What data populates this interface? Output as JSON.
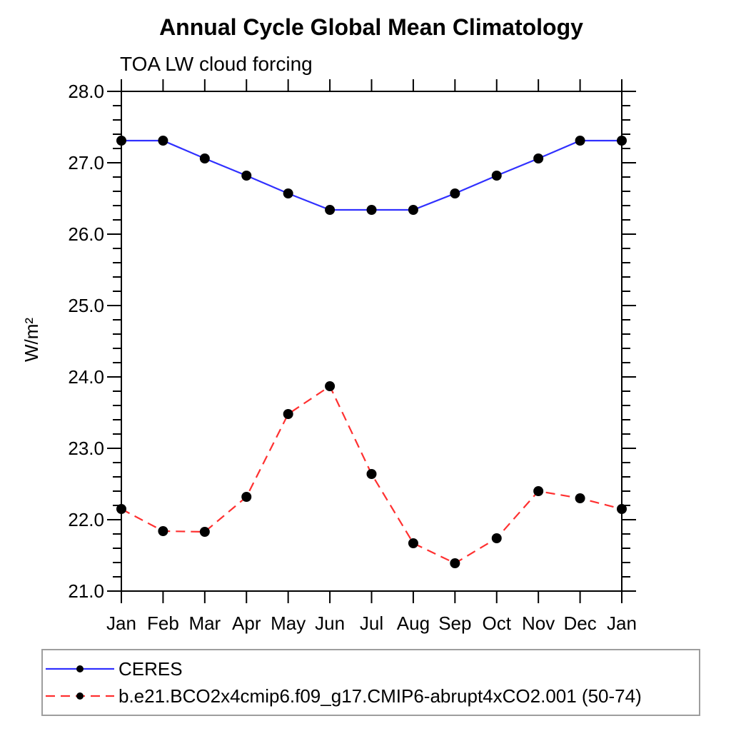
{
  "chart_data": {
    "type": "line",
    "title": "Annual Cycle Global Mean Climatology",
    "subtitle": "TOA LW cloud forcing",
    "ylabel": "W/m²",
    "xlabel": "",
    "categories": [
      "Jan",
      "Feb",
      "Mar",
      "Apr",
      "May",
      "Jun",
      "Jul",
      "Aug",
      "Sep",
      "Oct",
      "Nov",
      "Dec",
      "Jan"
    ],
    "series": [
      {
        "name": "CERES",
        "line_style": "solid",
        "color": "#3030ff",
        "marker": "filled-circle",
        "marker_color": "#000000",
        "values": [
          27.31,
          27.31,
          27.06,
          26.82,
          26.57,
          26.34,
          26.34,
          26.34,
          26.57,
          26.82,
          27.06,
          27.31,
          27.31
        ]
      },
      {
        "name": "b.e21.BCO2x4cmip6.f09_g17.CMIP6-abrupt4xCO2.001 (50-74)",
        "line_style": "dashed",
        "color": "#ff3030",
        "marker": "filled-circle",
        "marker_color": "#000000",
        "values": [
          22.15,
          21.84,
          21.83,
          22.32,
          23.48,
          23.87,
          22.64,
          21.67,
          21.39,
          21.74,
          22.4,
          22.3,
          22.15
        ]
      }
    ],
    "ylim": [
      21.0,
      28.0
    ],
    "ytick_interval_major": 1.0,
    "ytick_interval_minor": 0.2,
    "ytick_label_format": "one-decimal",
    "grid": false,
    "frame_color": "#000000",
    "legend_position": "bottom-left-box",
    "legend_border_color": "#9e9e9e"
  }
}
